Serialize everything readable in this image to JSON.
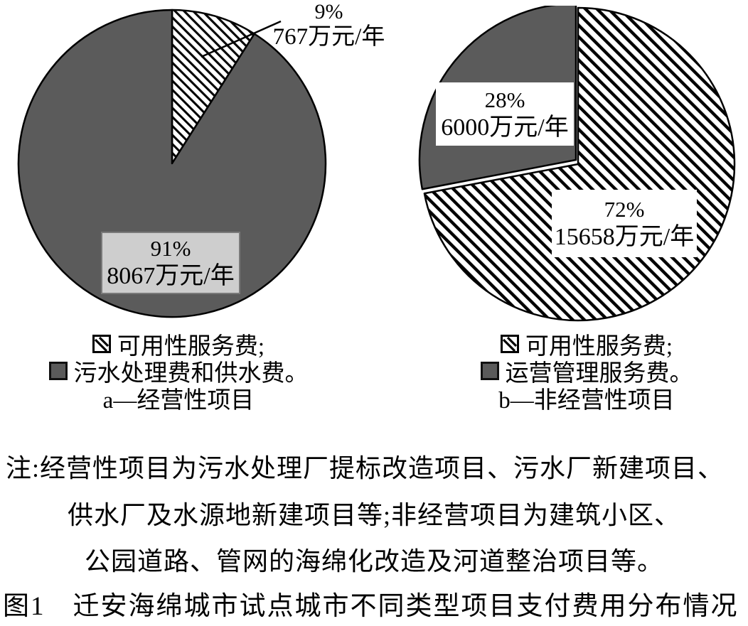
{
  "colors": {
    "slice_gray": "#5b5b5b",
    "label_box_gray": "#cecece",
    "label_box_border": "#7a7a7a",
    "hatch_line": "#000000",
    "background": "#ffffff",
    "text": "#000000"
  },
  "chart_data": [
    {
      "type": "pie",
      "title": "a—经营性项目",
      "start_angle_deg": 0,
      "direction": "clockwise",
      "slices": [
        {
          "label": "可用性服务费",
          "percent": 9,
          "percent_label": "9%",
          "value_label": "767万元/年",
          "value_wan_yuan_per_year": 767,
          "fill": "hatch"
        },
        {
          "label": "污水处理费和供水费",
          "percent": 91,
          "percent_label": "91%",
          "value_label": "8067万元/年",
          "value_wan_yuan_per_year": 8067,
          "fill": "solid-gray"
        }
      ]
    },
    {
      "type": "pie",
      "title": "b—非经营性项目",
      "start_angle_deg": 0,
      "direction": "clockwise",
      "slices": [
        {
          "label": "可用性服务费",
          "percent": 72,
          "percent_label": "72%",
          "value_label": "15658万元/年",
          "value_wan_yuan_per_year": 15658,
          "fill": "hatch"
        },
        {
          "label": "运营管理服务费",
          "percent": 28,
          "percent_label": "28%",
          "value_label": "6000万元/年",
          "value_wan_yuan_per_year": 6000,
          "fill": "solid-gray"
        }
      ]
    }
  ],
  "legend_a": {
    "items": [
      {
        "swatch": "hatch",
        "label": "可用性服务费;"
      },
      {
        "swatch": "solid-gray",
        "label": "污水处理费和供水费。"
      }
    ]
  },
  "legend_b": {
    "items": [
      {
        "swatch": "hatch",
        "label": "可用性服务费;"
      },
      {
        "swatch": "solid-gray",
        "label": "运营管理服务费。"
      }
    ]
  },
  "note": {
    "lines": [
      "注:经营性项目为污水处理厂提标改造项目、污水厂新建项目、",
      "供水厂及水源地新建项目等;非经营项目为建筑小区、",
      "公园道路、管网的海绵化改造及河道整治项目等。"
    ]
  },
  "caption": "图1　迁安海绵城市试点城市不同类型项目支付费用分布情况"
}
